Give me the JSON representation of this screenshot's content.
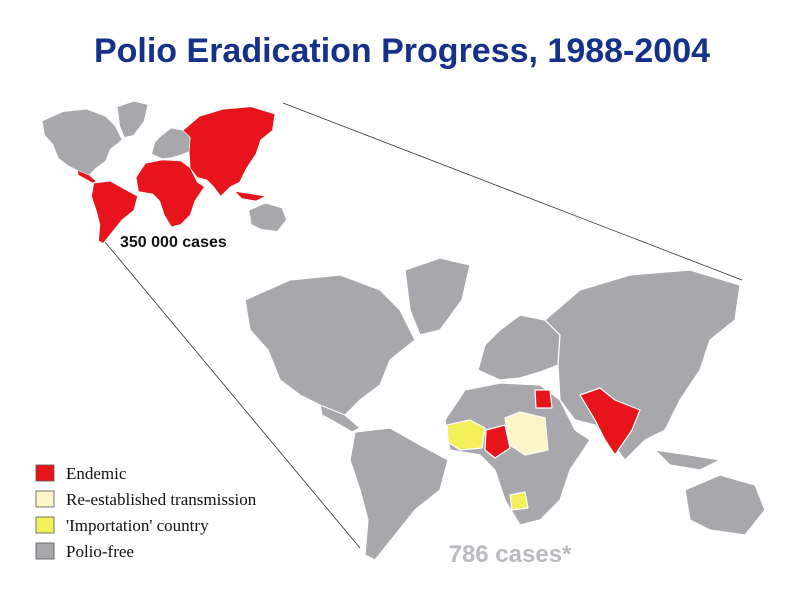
{
  "title": "Polio Eradication Progress, 1988-2004",
  "maps": [
    {
      "label": "350 000 cases"
    },
    {
      "label": "786 cases*"
    }
  ],
  "legend": [
    {
      "label": "Endemic",
      "color": "#e8141b"
    },
    {
      "label": "Re-established transmission",
      "color": "#fbf5c8"
    },
    {
      "label": "'Importation' country",
      "color": "#f4ef5a"
    },
    {
      "label": "Polio-free",
      "color": "#a8a8ac"
    }
  ]
}
